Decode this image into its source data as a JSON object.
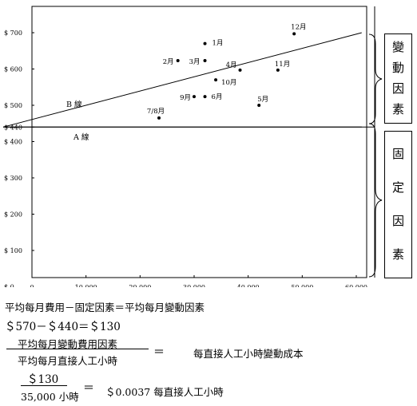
{
  "chart_data": {
    "type": "scatter",
    "xlabel": "",
    "ylabel": "",
    "xlim": [
      0,
      62000
    ],
    "ylim": [
      0,
      800
    ],
    "x_ticks": [
      {
        "value": 0,
        "label": "0"
      },
      {
        "value": 10000,
        "label": "10,000"
      },
      {
        "value": 20000,
        "label": "20,000"
      },
      {
        "value": 30000,
        "label": "30,000"
      },
      {
        "value": 40000,
        "label": "40,000"
      },
      {
        "value": 50000,
        "label": "50,000"
      },
      {
        "value": 60000,
        "label": "60,000"
      }
    ],
    "y_ticks": [
      {
        "value": 0,
        "label": "$ 0"
      },
      {
        "value": 100,
        "label": "$ 100"
      },
      {
        "value": 200,
        "label": "$ 200"
      },
      {
        "value": 300,
        "label": "$ 300"
      },
      {
        "value": 400,
        "label": "$ 400"
      },
      {
        "value": 440,
        "label": "$ 440"
      },
      {
        "value": 500,
        "label": "$ 500"
      },
      {
        "value": 600,
        "label": "$ 600"
      },
      {
        "value": 700,
        "label": "$ 700"
      }
    ],
    "points": [
      {
        "label": "1月",
        "x": 32000,
        "y": 670
      },
      {
        "label": "2月",
        "x": 27000,
        "y": 623
      },
      {
        "label": "3月",
        "x": 32000,
        "y": 623
      },
      {
        "label": "4月",
        "x": 38500,
        "y": 597
      },
      {
        "label": "5月",
        "x": 42000,
        "y": 500
      },
      {
        "label": "6月",
        "x": 32000,
        "y": 524
      },
      {
        "label": "7/8月",
        "x": 23500,
        "y": 465
      },
      {
        "label": "9月",
        "x": 30000,
        "y": 524
      },
      {
        "label": "10月",
        "x": 34000,
        "y": 570
      },
      {
        "label": "11月",
        "x": 45500,
        "y": 597
      },
      {
        "label": "12月",
        "x": 48500,
        "y": 697
      }
    ],
    "lines": [
      {
        "name": "B 線",
        "from": [
          0,
          440
        ],
        "to": [
          61000,
          700
        ]
      },
      {
        "name": "A 線",
        "from": [
          0,
          440
        ],
        "to": [
          61000,
          440
        ]
      }
    ],
    "grid": false
  },
  "side_labels": {
    "variable": [
      "變",
      "動",
      "因",
      "素"
    ],
    "fixed": [
      "固",
      "定",
      "因",
      "素"
    ]
  },
  "formulas": {
    "line1": "平均每月費用－固定因素＝平均每月變動因素",
    "line2": "＄570－＄440＝＄130",
    "frac1_num": "平均每月變動費用因素",
    "frac1_den": "平均每月直接人工小時",
    "equals": "＝",
    "frac1_result": "每直接人工小時變動成本",
    "frac2_num": "＄130",
    "frac2_den": "35,000 小時",
    "frac2_result": "＄0.0037 每直接人工小時"
  }
}
